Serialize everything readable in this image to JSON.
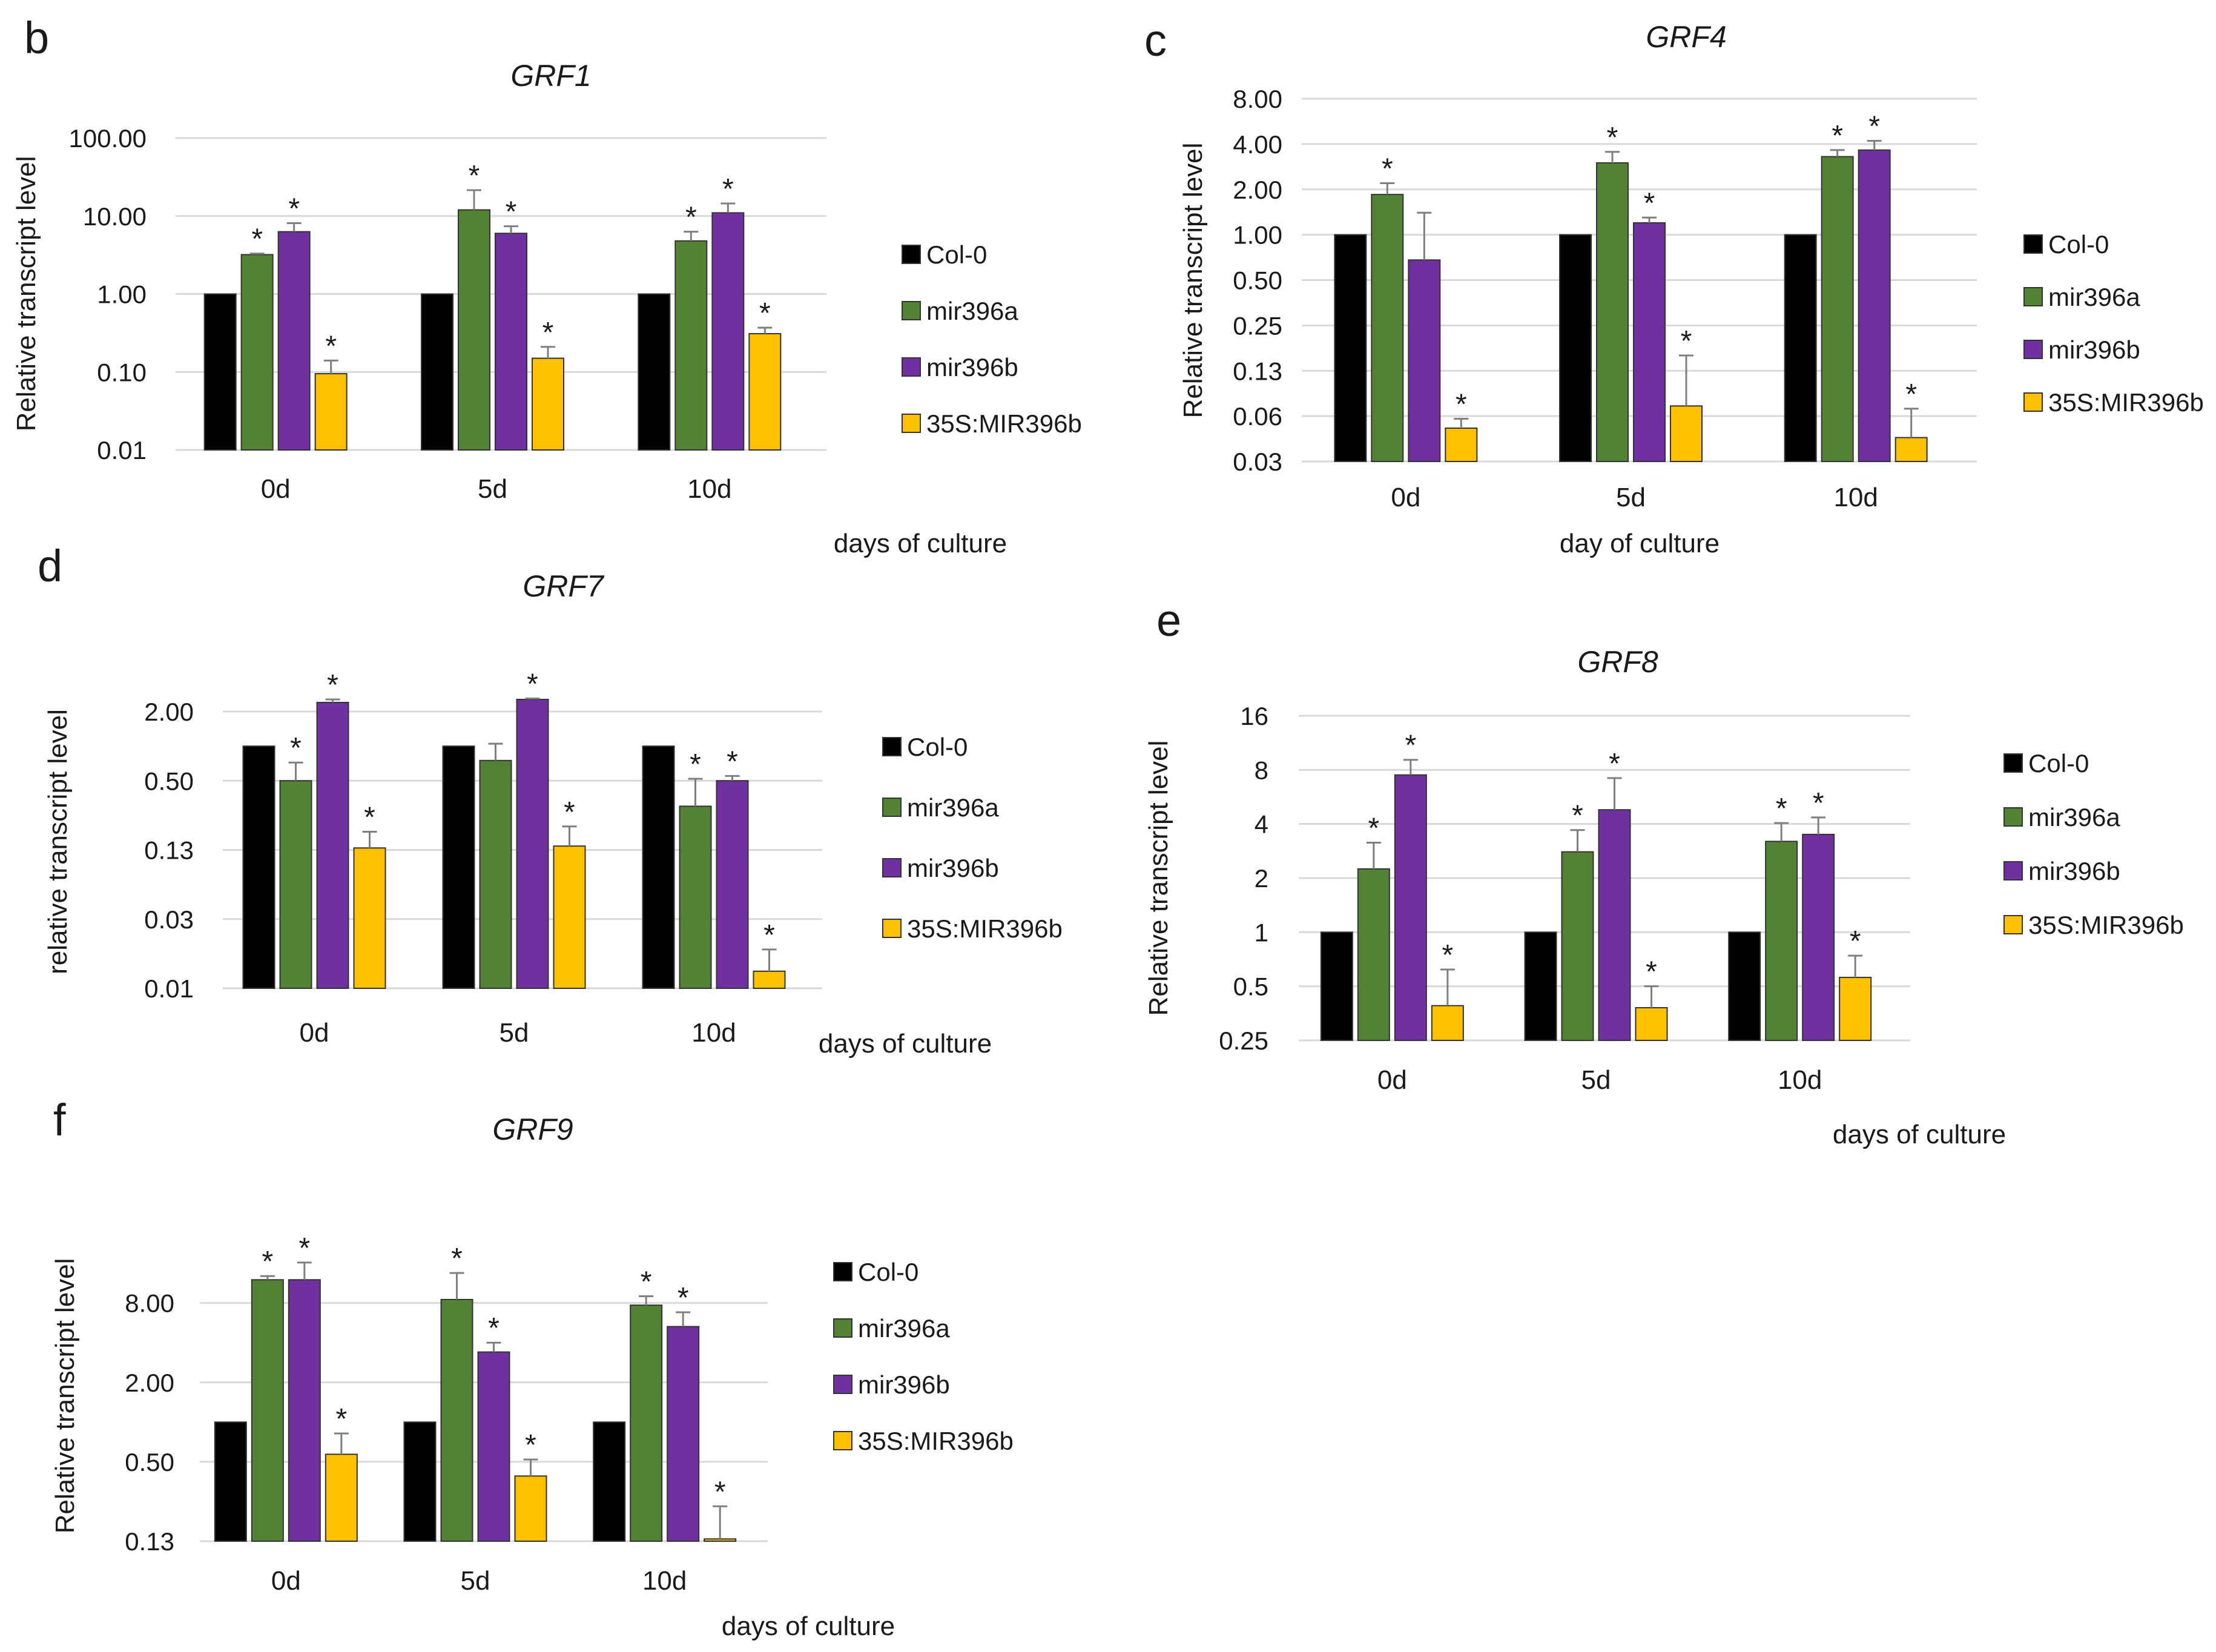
{
  "colors": {
    "Col-0": "#000000",
    "mir396a": "#548235",
    "mir396b": "#7030A0",
    "35S:MIR396b": "#FFC000",
    "grid": "#d9d9d9",
    "errorbar": "#7f7f7f"
  },
  "chart_data": [
    {
      "panel": "b",
      "type": "bar",
      "scale": "log",
      "title": "GRF1",
      "ylabel": "Relative transcript level",
      "xlabel": "days of culture",
      "yticks": [
        0.01,
        0.1,
        1,
        10,
        100
      ],
      "ytick_labels": [
        "0.01",
        "0.10",
        "1.00",
        "10.00",
        "100.00"
      ],
      "ylim": [
        0.01,
        100
      ],
      "categories": [
        "0d",
        "5d",
        "10d"
      ],
      "legend": [
        "Col-0",
        "mir396a",
        "mir396b",
        "35S:MIR396b"
      ],
      "series": [
        {
          "name": "Col-0",
          "values": [
            1,
            1,
            1
          ],
          "err": [
            0,
            0,
            0
          ],
          "sig": [
            false,
            false,
            false
          ]
        },
        {
          "name": "mir396a",
          "values": [
            3.2,
            12,
            4.8
          ],
          "err": [
            0.1,
            9.5,
            1.5
          ],
          "sig": [
            true,
            true,
            true
          ]
        },
        {
          "name": "mir396b",
          "values": [
            6.3,
            6.0,
            11
          ],
          "err": [
            1.8,
            1.4,
            3.5
          ],
          "sig": [
            true,
            true,
            true
          ]
        },
        {
          "name": "35S:MIR396b",
          "values": [
            0.095,
            0.15,
            0.31
          ],
          "err": [
            0.045,
            0.06,
            0.06
          ],
          "sig": [
            true,
            true,
            true
          ]
        }
      ]
    },
    {
      "panel": "c",
      "type": "bar",
      "scale": "log",
      "title": "GRF4",
      "ylabel": "Relative transcript level",
      "xlabel": "day of culture",
      "yticks": [
        0.03125,
        0.0625,
        0.125,
        0.25,
        0.5,
        1,
        2,
        4,
        8
      ],
      "ytick_labels": [
        "0.03",
        "0.06",
        "0.13",
        "0.25",
        "0.50",
        "1.00",
        "2.00",
        "4.00",
        "8.00"
      ],
      "ylim": [
        0.03125,
        8
      ],
      "categories": [
        "0d",
        "5d",
        "10d"
      ],
      "legend": [
        "Col-0",
        "mir396a",
        "mir396b",
        "35S:MIR396b"
      ],
      "series": [
        {
          "name": "Col-0",
          "values": [
            1,
            1,
            1
          ],
          "err": [
            0,
            0,
            0
          ],
          "sig": [
            false,
            false,
            false
          ]
        },
        {
          "name": "mir396a",
          "values": [
            1.85,
            3.0,
            3.3
          ],
          "err": [
            0.35,
            0.55,
            0.35
          ],
          "sig": [
            true,
            true,
            true
          ]
        },
        {
          "name": "mir396b",
          "values": [
            0.68,
            1.2,
            3.65
          ],
          "err": [
            0.72,
            0.1,
            0.55
          ],
          "sig": [
            false,
            true,
            true
          ]
        },
        {
          "name": "35S:MIR396b",
          "values": [
            0.052,
            0.073,
            0.045
          ],
          "err": [
            0.008,
            0.085,
            0.025
          ],
          "sig": [
            true,
            true,
            true
          ]
        }
      ]
    },
    {
      "panel": "d",
      "type": "bar",
      "scale": "log",
      "title": "GRF7",
      "ylabel": "relative transcript level",
      "xlabel": "days of culture",
      "yticks": [
        0.0078125,
        0.03125,
        0.125,
        0.5,
        2
      ],
      "ytick_labels": [
        "0.01",
        "0.03",
        "0.13",
        "0.50",
        "2.00"
      ],
      "ylim": [
        0.0078125,
        2
      ],
      "categories": [
        "0d",
        "5d",
        "10d"
      ],
      "legend": [
        "Col-0",
        "mir396a",
        "mir396b",
        "35S:MIR396b"
      ],
      "series": [
        {
          "name": "Col-0",
          "values": [
            1,
            1,
            1
          ],
          "err": [
            0,
            0,
            0
          ],
          "sig": [
            false,
            false,
            false
          ]
        },
        {
          "name": "mir396a",
          "values": [
            0.5,
            0.75,
            0.3
          ],
          "err": [
            0.22,
            0.3,
            0.22
          ],
          "sig": [
            true,
            false,
            true
          ]
        },
        {
          "name": "mir396b",
          "values": [
            2.4,
            2.55,
            0.5
          ],
          "err": [
            0.15,
            0.05,
            0.05
          ],
          "sig": [
            true,
            true,
            true
          ]
        },
        {
          "name": "35S:MIR396b",
          "values": [
            0.13,
            0.135,
            0.011
          ],
          "err": [
            0.05,
            0.065,
            0.006
          ],
          "sig": [
            true,
            true,
            true
          ]
        }
      ]
    },
    {
      "panel": "e",
      "type": "bar",
      "scale": "log",
      "title": "GRF8",
      "ylabel": "Relative transcript level",
      "xlabel": "days of culture",
      "yticks": [
        0.25,
        0.5,
        1,
        2,
        4,
        8,
        16
      ],
      "ytick_labels": [
        "0.25",
        "0.5",
        "1",
        "2",
        "4",
        "8",
        "16"
      ],
      "ylim": [
        0.25,
        16
      ],
      "categories": [
        "0d",
        "5d",
        "10d"
      ],
      "legend": [
        "Col-0",
        "mir396a",
        "mir396b",
        "35S:MIR396b"
      ],
      "series": [
        {
          "name": "Col-0",
          "values": [
            1,
            1,
            1
          ],
          "err": [
            0,
            0,
            0
          ],
          "sig": [
            false,
            false,
            false
          ]
        },
        {
          "name": "mir396a",
          "values": [
            2.25,
            2.8,
            3.2
          ],
          "err": [
            0.9,
            0.9,
            0.85
          ],
          "sig": [
            true,
            true,
            true
          ]
        },
        {
          "name": "mir396b",
          "values": [
            7.5,
            4.8,
            3.5
          ],
          "err": [
            1.6,
            2.4,
            0.85
          ],
          "sig": [
            true,
            true,
            true
          ]
        },
        {
          "name": "35S:MIR396b",
          "values": [
            0.39,
            0.38,
            0.56
          ],
          "err": [
            0.23,
            0.12,
            0.18
          ],
          "sig": [
            true,
            true,
            true
          ]
        }
      ]
    },
    {
      "panel": "f",
      "type": "bar",
      "scale": "log",
      "title": "GRF9",
      "ylabel": "Relative transcript level",
      "xlabel": "days of culture",
      "yticks": [
        0.125,
        0.5,
        2,
        8
      ],
      "ytick_labels": [
        "0.13",
        "0.50",
        "2.00",
        "8.00"
      ],
      "ylim": [
        0.125,
        20
      ],
      "categories": [
        "0d",
        "5d",
        "10d"
      ],
      "legend": [
        "Col-0",
        "mir396a",
        "mir396b",
        "35S:MIR396b"
      ],
      "series": [
        {
          "name": "Col-0",
          "values": [
            1,
            1,
            1
          ],
          "err": [
            0,
            0,
            0
          ],
          "sig": [
            false,
            false,
            false
          ]
        },
        {
          "name": "mir396a",
          "values": [
            12,
            8.5,
            7.7
          ],
          "err": [
            0.8,
            5.0,
            1.3
          ],
          "sig": [
            true,
            true,
            true
          ]
        },
        {
          "name": "mir396b",
          "values": [
            12,
            3.4,
            5.3
          ],
          "err": [
            4.2,
            0.6,
            1.5
          ],
          "sig": [
            true,
            true,
            true
          ]
        },
        {
          "name": "35S:MIR396b",
          "values": [
            0.57,
            0.39,
            0.13
          ],
          "err": [
            0.25,
            0.13,
            0.1
          ],
          "sig": [
            true,
            true,
            true
          ]
        }
      ]
    }
  ]
}
